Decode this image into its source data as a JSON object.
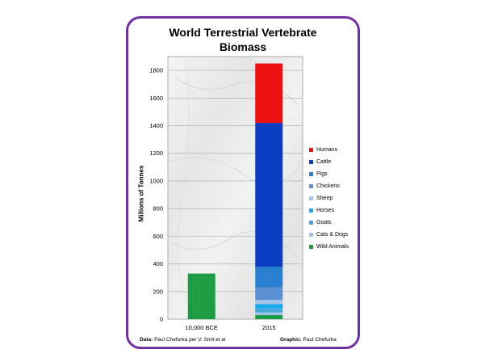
{
  "chart_data": {
    "type": "bar",
    "stacked": true,
    "title_line1": "World Terrestrial Vertebrate",
    "title_line2": "Biomass",
    "xlabel": "",
    "ylabel": "Millions of Tonnes",
    "ylim": [
      0,
      1900
    ],
    "yticks": [
      "0",
      "200",
      "400",
      "600",
      "800",
      "1000",
      "1200",
      "1400",
      "1600",
      "1800"
    ],
    "grid": true,
    "legend_position": "right",
    "categories": [
      "10,000 BCE",
      "2015"
    ],
    "series": [
      {
        "name": "Wild Animals",
        "color": "#1e9b45",
        "values": [
          330,
          30
        ]
      },
      {
        "name": "Cats & Dogs",
        "color": "#9fc4ea",
        "values": [
          0,
          20
        ]
      },
      {
        "name": "Goats",
        "color": "#45a8dc",
        "values": [
          0,
          30
        ]
      },
      {
        "name": "Horses",
        "color": "#1aa9ec",
        "values": [
          0,
          30
        ]
      },
      {
        "name": "Sheep",
        "color": "#a3c0e6",
        "values": [
          0,
          30
        ]
      },
      {
        "name": "Chickens",
        "color": "#5b8fd4",
        "values": [
          0,
          90
        ]
      },
      {
        "name": "Pigs",
        "color": "#2a7fd0",
        "values": [
          0,
          150
        ]
      },
      {
        "name": "Cattle",
        "color": "#0a3dbf",
        "values": [
          0,
          1040
        ]
      },
      {
        "name": "Humans",
        "color": "#ee1111",
        "values": [
          0,
          430
        ]
      }
    ]
  },
  "footer": {
    "data_label": "Data:",
    "data_text": "Paul Chefurka per V. Smil et al",
    "graphic_label": "Graphic:",
    "graphic_text": "Paul Chefurka"
  }
}
